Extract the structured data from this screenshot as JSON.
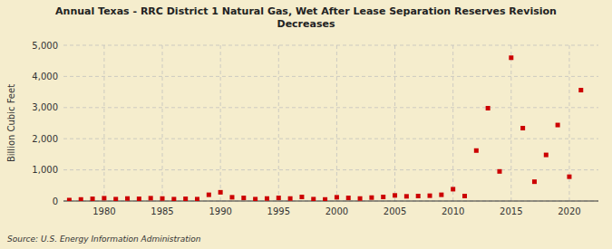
{
  "chart_data": {
    "type": "scatter",
    "title": "Annual Texas - RRC District 1 Natural Gas, Wet After Lease Separation Reserves Revision\nDecreases",
    "y_label": "Billion Cubic Feet",
    "annotations": [
      "Source: U.S. Energy Information Administration"
    ],
    "x": [
      1977,
      1978,
      1979,
      1980,
      1981,
      1982,
      1983,
      1984,
      1985,
      1986,
      1987,
      1988,
      1989,
      1990,
      1991,
      1992,
      1993,
      1994,
      1995,
      1996,
      1997,
      1998,
      1999,
      2000,
      2001,
      2002,
      2003,
      2004,
      2005,
      2006,
      2007,
      2008,
      2009,
      2010,
      2011,
      2012,
      2013,
      2014,
      2015,
      2016,
      2017,
      2018,
      2019,
      2020,
      2021
    ],
    "values": [
      30,
      50,
      70,
      90,
      60,
      80,
      70,
      90,
      80,
      60,
      70,
      60,
      200,
      280,
      120,
      100,
      60,
      80,
      100,
      80,
      130,
      60,
      50,
      120,
      100,
      80,
      110,
      130,
      180,
      150,
      160,
      170,
      200,
      380,
      160,
      1620,
      2980,
      950,
      4600,
      2340,
      620,
      1480,
      2440,
      780,
      3560
    ],
    "color": "#cc0000",
    "marker": "square",
    "xlim": [
      1976.5,
      2022.5
    ],
    "xticks": [
      1980,
      1985,
      1990,
      1995,
      2000,
      2005,
      2010,
      2015,
      2020
    ],
    "ylim": [
      0,
      5000
    ],
    "yticks": [
      0,
      {
        "value": 1000,
        "label": "1,000"
      },
      {
        "value": 2000,
        "label": "2,000"
      },
      {
        "value": 3000,
        "label": "3,000"
      },
      {
        "value": 4000,
        "label": "4,000"
      },
      {
        "value": 5000,
        "label": "5,000"
      }
    ],
    "grid": true
  }
}
